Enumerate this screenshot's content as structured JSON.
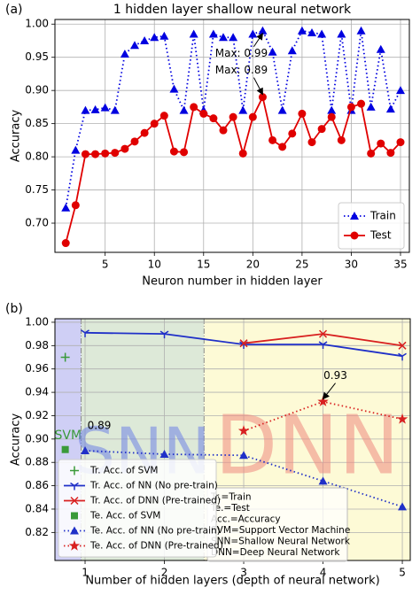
{
  "chart_data": [
    {
      "type": "line",
      "panel_label": "(a)",
      "title": "1 hidden layer shallow neural network",
      "xlabel": "Neuron number in hidden layer",
      "ylabel": "Accuracy",
      "x": [
        1,
        2,
        3,
        4,
        5,
        6,
        7,
        8,
        9,
        10,
        11,
        12,
        13,
        14,
        15,
        16,
        17,
        18,
        19,
        20,
        21,
        22,
        23,
        24,
        25,
        26,
        27,
        28,
        29,
        30,
        31,
        32,
        33,
        34,
        35
      ],
      "series": [
        {
          "name": "Train",
          "color": "#0000e0",
          "marker": "triangle",
          "linestyle": "dotted",
          "values": [
            0.723,
            0.81,
            0.87,
            0.871,
            0.874,
            0.87,
            0.955,
            0.968,
            0.975,
            0.98,
            0.982,
            0.902,
            0.87,
            0.985,
            0.87,
            0.985,
            0.98,
            0.98,
            0.87,
            0.985,
            0.99,
            0.958,
            0.87,
            0.96,
            0.99,
            0.987,
            0.985,
            0.87,
            0.985,
            0.87,
            0.99,
            0.875,
            0.962,
            0.872,
            0.9
          ]
        },
        {
          "name": "Test",
          "color": "#e00000",
          "marker": "circle",
          "linestyle": "solid",
          "values": [
            0.67,
            0.727,
            0.804,
            0.804,
            0.805,
            0.806,
            0.812,
            0.823,
            0.836,
            0.85,
            0.862,
            0.808,
            0.807,
            0.875,
            0.865,
            0.858,
            0.84,
            0.86,
            0.805,
            0.86,
            0.89,
            0.825,
            0.815,
            0.835,
            0.865,
            0.822,
            0.842,
            0.86,
            0.825,
            0.875,
            0.88,
            0.805,
            0.82,
            0.806,
            0.822
          ]
        }
      ],
      "xlim": [
        -0.1,
        35.9
      ],
      "ylim": [
        0.656,
        1.007
      ],
      "xticks": [
        5,
        10,
        15,
        20,
        25,
        30,
        35
      ],
      "yticks": [
        {
          "value": 0.7,
          "label": "0.70"
        },
        0.75,
        {
          "value": 0.8,
          "label": "0.80"
        },
        0.85,
        {
          "value": 0.9,
          "label": "0.90"
        },
        0.95,
        {
          "value": 1,
          "label": "1.00"
        }
      ],
      "grid": true,
      "legend": "lower right",
      "annotations": [
        {
          "text": "Max: 0.99",
          "x": 21,
          "y": 0.99,
          "arrow": true
        },
        {
          "text": "Max: 0.89",
          "x": 21,
          "y": 0.89,
          "arrow": true
        }
      ]
    },
    {
      "type": "line",
      "panel_label": "(b)",
      "xlabel": "Number of hidden layers (depth of neural network)",
      "ylabel": "Accuracy",
      "series": [
        {
          "name": "Tr. Acc. of SVM",
          "color": "#3a9a3a",
          "marker": "plus",
          "linestyle": "none",
          "x": [
            0.75
          ],
          "values": [
            0.97
          ]
        },
        {
          "name": "Tr. Acc. of NN (No pre-train)",
          "color": "#2030c8",
          "marker": "tri_down",
          "linestyle": "solid",
          "x": [
            1,
            2,
            3,
            4,
            5
          ],
          "values": [
            0.991,
            0.99,
            0.981,
            0.981,
            0.971
          ]
        },
        {
          "name": "Tr. Acc. of DNN (Pre-trained)",
          "color": "#d82020",
          "marker": "x",
          "linestyle": "solid",
          "x": [
            3,
            4,
            5
          ],
          "values": [
            0.982,
            0.99,
            0.98
          ]
        },
        {
          "name": "Te. Acc. of SVM",
          "color": "#3a9a3a",
          "marker": "square",
          "linestyle": "none",
          "x": [
            0.75
          ],
          "values": [
            0.891
          ]
        },
        {
          "name": "Te. Acc. of NN (No pre-train)",
          "color": "#2030c8",
          "marker": "triangle",
          "linestyle": "dotted",
          "x": [
            1,
            2,
            3,
            4,
            5
          ],
          "values": [
            0.89,
            0.887,
            0.886,
            0.864,
            0.842
          ]
        },
        {
          "name": "Te. Acc. of DNN (Pre-trained)",
          "color": "#d82020",
          "marker": "star",
          "linestyle": "dotted",
          "x": [
            3,
            4,
            5
          ],
          "values": [
            0.907,
            0.932,
            0.917
          ]
        }
      ],
      "xlim": [
        0.62,
        5.1
      ],
      "ylim": [
        0.796,
        1.003
      ],
      "xticks": [
        1,
        2,
        3,
        4,
        5
      ],
      "yticks": [
        0.82,
        0.84,
        0.86,
        0.88,
        {
          "value": 0.9,
          "label": "0.90"
        },
        0.92,
        0.94,
        0.96,
        0.98,
        {
          "value": 1,
          "label": "1.00"
        }
      ],
      "grid": true,
      "legend": "lower left",
      "shaded_regions": [
        {
          "xlim": [
            0.62,
            0.95
          ],
          "color": "#cfcff5"
        },
        {
          "xlim": [
            0.95,
            2.5
          ],
          "color": "#dde9d8"
        },
        {
          "xlim": [
            2.5,
            5.1
          ],
          "color": "#fdfad6"
        }
      ],
      "region_labels": [
        {
          "text": "SVM",
          "color": "#3a9a3a"
        },
        {
          "text": "SNN",
          "color": "#6f82e6"
        },
        {
          "text": "DNN",
          "color": "#f08a80"
        }
      ],
      "annotations": [
        {
          "text": "0.89",
          "x": 1,
          "y": 0.89,
          "arrow": false
        },
        {
          "text": "0.93",
          "x": 4,
          "y": 0.932,
          "arrow": true
        }
      ],
      "text_box": [
        "Tr.=Train",
        "Te.=Test",
        "Acc.=Accuracy",
        "SVM=Support Vector Machine",
        "SNN=Shallow Neural Network",
        "DNN=Deep Neural Network"
      ]
    }
  ]
}
